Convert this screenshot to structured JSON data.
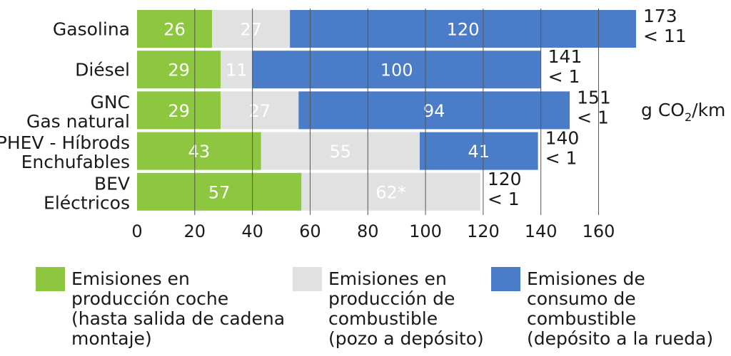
{
  "chart_data": {
    "type": "bar",
    "orientation": "horizontal",
    "stacked": true,
    "categories": [
      [
        "Gasolina"
      ],
      [
        "Diésel"
      ],
      [
        "GNC",
        "Gas natural"
      ],
      [
        "PHEV - Híbrods",
        "Enchufables"
      ],
      [
        "BEV",
        "Eléctricos"
      ]
    ],
    "series": [
      {
        "name": [
          "Emisiones en",
          "producción coche",
          "(hasta salida de cadena",
          "montaje)"
        ],
        "color": "#8dc63f",
        "values": [
          26,
          29,
          29,
          43,
          57
        ],
        "labels": [
          "26",
          "29",
          "29",
          "43",
          "57"
        ]
      },
      {
        "name": [
          "Emisiones en",
          "producción de",
          "combustible",
          "(pozo a depósito)"
        ],
        "color": "#e0e1e1",
        "values": [
          27,
          11,
          27,
          55,
          62
        ],
        "labels": [
          "27",
          "11",
          "27",
          "55",
          "62*"
        ]
      },
      {
        "name": [
          "Emisiones de",
          "consumo de",
          "combustible",
          "(depósito a la rueda)"
        ],
        "color": "#4a7cc7",
        "values": [
          120,
          100,
          94,
          41,
          0
        ],
        "labels": [
          "120",
          "100",
          "94",
          "41",
          ""
        ]
      }
    ],
    "totals": [
      [
        "173",
        "< 11"
      ],
      [
        "141",
        "< 1"
      ],
      [
        "151",
        "< 1"
      ],
      [
        "140",
        "< 1"
      ],
      [
        "120",
        "< 1"
      ]
    ],
    "unit": {
      "base": "g CO",
      "sub": "2",
      "tail": "/km"
    },
    "xlim": [
      0,
      173
    ],
    "xticks": [
      0,
      20,
      40,
      60,
      80,
      100,
      120,
      140,
      160
    ],
    "grid": true,
    "legend_position": "bottom"
  }
}
